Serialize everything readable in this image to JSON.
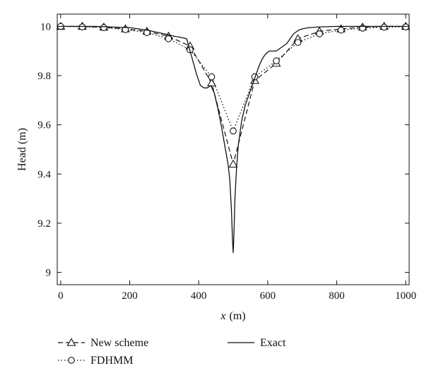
{
  "chart_data": {
    "type": "line",
    "title": "",
    "xlabel_var": "x",
    "xlabel_unit": "(m)",
    "ylabel": "Head (m)",
    "xlim": [
      -10,
      1010
    ],
    "ylim": [
      8.95,
      10.05
    ],
    "xticks": [
      0,
      200,
      400,
      600,
      800,
      1000
    ],
    "yticks": [
      9,
      9.2,
      9.4,
      9.6,
      9.8,
      10
    ],
    "xtick_labels": [
      "0",
      "200",
      "400",
      "600",
      "800",
      "1000"
    ],
    "ytick_labels": [
      "9",
      "9.2",
      "9.4",
      "9.6",
      "9.8",
      "10"
    ],
    "legend_placement": "bottom",
    "series": [
      {
        "name": "New scheme",
        "style": "dashed",
        "marker": "triangle",
        "x": [
          0,
          62.5,
          125,
          187.5,
          250,
          312.5,
          375,
          437.5,
          500,
          562.5,
          625,
          687.5,
          750,
          812.5,
          875,
          937.5,
          1000
        ],
        "y": [
          10.0,
          10.0,
          9.997,
          9.99,
          9.98,
          9.96,
          9.92,
          9.77,
          9.44,
          9.78,
          9.85,
          9.95,
          9.98,
          9.99,
          9.997,
          10.0,
          10.0
        ]
      },
      {
        "name": "FDHMM",
        "style": "dotted",
        "marker": "circle",
        "x": [
          0,
          62.5,
          125,
          187.5,
          250,
          312.5,
          375,
          437.5,
          500,
          562.5,
          625,
          687.5,
          750,
          812.5,
          875,
          937.5,
          1000
        ],
        "y": [
          10.0,
          9.998,
          9.995,
          9.987,
          9.975,
          9.95,
          9.905,
          9.795,
          9.575,
          9.795,
          9.86,
          9.935,
          9.97,
          9.985,
          9.993,
          9.997,
          9.998
        ]
      },
      {
        "name": "Exact",
        "style": "solid",
        "marker": "none",
        "x": [
          0,
          100,
          200,
          250,
          300,
          330,
          350,
          365,
          375,
          385,
          395,
          405,
          415,
          425,
          435,
          445,
          455,
          465,
          475,
          485,
          490,
          495,
          498,
          500,
          502,
          505,
          510,
          515,
          525,
          535,
          545,
          555,
          565,
          575,
          585,
          595,
          605,
          615,
          625,
          635,
          645,
          655,
          665,
          675,
          690,
          700,
          720,
          750,
          800,
          900,
          1000
        ],
        "y": [
          10.0,
          10.0,
          9.995,
          9.985,
          9.97,
          9.96,
          9.955,
          9.95,
          9.9,
          9.85,
          9.8,
          9.76,
          9.75,
          9.75,
          9.76,
          9.73,
          9.67,
          9.6,
          9.52,
          9.44,
          9.38,
          9.25,
          9.13,
          9.08,
          9.15,
          9.3,
          9.43,
          9.52,
          9.62,
          9.68,
          9.72,
          9.76,
          9.8,
          9.84,
          9.87,
          9.89,
          9.9,
          9.9,
          9.9,
          9.91,
          9.92,
          9.93,
          9.95,
          9.97,
          9.985,
          9.99,
          9.995,
          9.998,
          10.0,
          10.0,
          10.0
        ]
      }
    ]
  }
}
